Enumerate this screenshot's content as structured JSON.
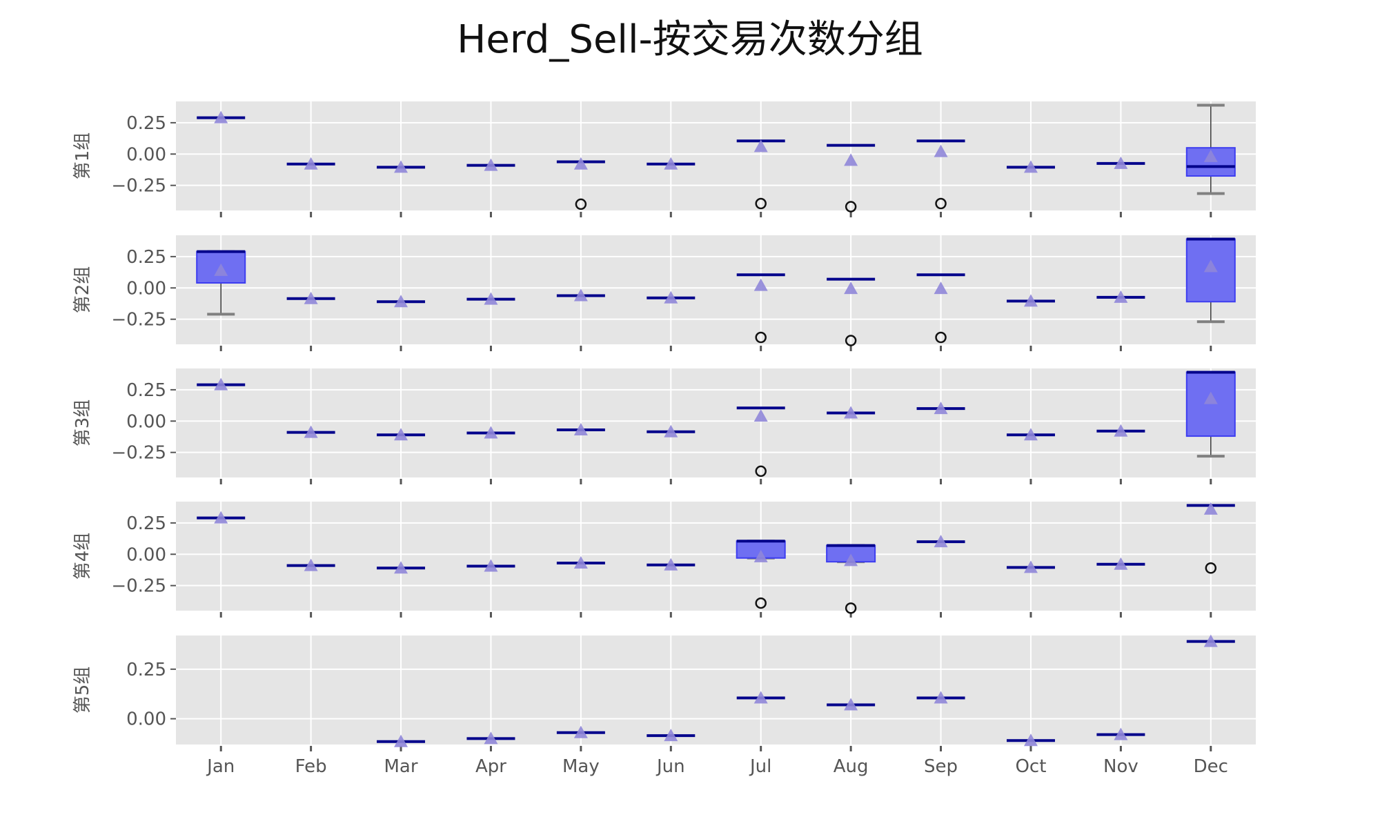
{
  "figure": {
    "title": "Herd_Sell-按交易次数分组"
  },
  "colors": {
    "panel_background": "#e5e5e5",
    "grid": "#ffffff",
    "box_fill": "#6f6ff2",
    "box_edge": "#3d3df0",
    "median": "#00008b",
    "mean_marker": "#8f86d8",
    "whisker": "#808080",
    "flier_edge": "#111111"
  },
  "chart_data": {
    "type": "box",
    "grid": true,
    "categories": [
      "Jan",
      "Feb",
      "Mar",
      "Apr",
      "May",
      "Jun",
      "Jul",
      "Aug",
      "Sep",
      "Oct",
      "Nov",
      "Dec"
    ],
    "panels": [
      {
        "ylabel": "第1组",
        "ylim": [
          -0.45,
          0.42
        ],
        "yticks": [
          0.25,
          0.0,
          -0.25
        ],
        "ytick_labels": [
          "0.25",
          "0.00",
          "−0.25"
        ],
        "boxes": [
          {
            "cat": "Jan",
            "median": 0.29,
            "mean": 0.29
          },
          {
            "cat": "Feb",
            "median": -0.08,
            "mean": -0.08
          },
          {
            "cat": "Mar",
            "median": -0.105,
            "mean": -0.105
          },
          {
            "cat": "Apr",
            "median": -0.09,
            "mean": -0.09
          },
          {
            "cat": "May",
            "median": -0.062,
            "mean": -0.08,
            "fliers": [
              -0.4
            ]
          },
          {
            "cat": "Jun",
            "median": -0.08,
            "mean": -0.08
          },
          {
            "cat": "Jul",
            "median": 0.105,
            "mean": 0.06,
            "fliers": [
              -0.395
            ]
          },
          {
            "cat": "Aug",
            "median": 0.07,
            "mean": -0.05,
            "fliers": [
              -0.42
            ]
          },
          {
            "cat": "Sep",
            "median": 0.105,
            "mean": 0.02,
            "fliers": [
              -0.395
            ]
          },
          {
            "cat": "Oct",
            "median": -0.105,
            "mean": -0.105
          },
          {
            "cat": "Nov",
            "median": -0.075,
            "mean": -0.075
          },
          {
            "cat": "Dec",
            "median": -0.1,
            "mean": -0.02,
            "q1": -0.175,
            "q3": 0.05,
            "whislo": -0.315,
            "whishi": 0.39
          }
        ]
      },
      {
        "ylabel": "第2组",
        "ylim": [
          -0.45,
          0.42
        ],
        "yticks": [
          0.25,
          0.0,
          -0.25
        ],
        "ytick_labels": [
          "0.25",
          "0.00",
          "−0.25"
        ],
        "boxes": [
          {
            "cat": "Jan",
            "median": 0.29,
            "mean": 0.14,
            "q1": 0.04,
            "q3": 0.29,
            "whislo": -0.21,
            "whishi": 0.29
          },
          {
            "cat": "Feb",
            "median": -0.085,
            "mean": -0.085
          },
          {
            "cat": "Mar",
            "median": -0.11,
            "mean": -0.11
          },
          {
            "cat": "Apr",
            "median": -0.09,
            "mean": -0.09
          },
          {
            "cat": "May",
            "median": -0.062,
            "mean": -0.062
          },
          {
            "cat": "Jun",
            "median": -0.08,
            "mean": -0.08
          },
          {
            "cat": "Jul",
            "median": 0.105,
            "mean": 0.02,
            "fliers": [
              -0.395
            ]
          },
          {
            "cat": "Aug",
            "median": 0.07,
            "mean": -0.005,
            "fliers": [
              -0.42
            ]
          },
          {
            "cat": "Sep",
            "median": 0.105,
            "mean": -0.005,
            "fliers": [
              -0.395
            ]
          },
          {
            "cat": "Oct",
            "median": -0.105,
            "mean": -0.105
          },
          {
            "cat": "Nov",
            "median": -0.075,
            "mean": -0.075
          },
          {
            "cat": "Dec",
            "median": 0.39,
            "mean": 0.17,
            "q1": -0.11,
            "q3": 0.39,
            "whislo": -0.27,
            "whishi": 0.39
          }
        ]
      },
      {
        "ylabel": "第3组",
        "ylim": [
          -0.45,
          0.42
        ],
        "yticks": [
          0.25,
          0.0,
          -0.25
        ],
        "ytick_labels": [
          "0.25",
          "0.00",
          "−0.25"
        ],
        "boxes": [
          {
            "cat": "Jan",
            "median": 0.29,
            "mean": 0.29
          },
          {
            "cat": "Feb",
            "median": -0.09,
            "mean": -0.09
          },
          {
            "cat": "Mar",
            "median": -0.11,
            "mean": -0.11
          },
          {
            "cat": "Apr",
            "median": -0.095,
            "mean": -0.095
          },
          {
            "cat": "May",
            "median": -0.07,
            "mean": -0.07
          },
          {
            "cat": "Jun",
            "median": -0.085,
            "mean": -0.085
          },
          {
            "cat": "Jul",
            "median": 0.105,
            "mean": 0.04,
            "fliers": [
              -0.4
            ]
          },
          {
            "cat": "Aug",
            "median": 0.065,
            "mean": 0.065
          },
          {
            "cat": "Sep",
            "median": 0.1,
            "mean": 0.1
          },
          {
            "cat": "Oct",
            "median": -0.11,
            "mean": -0.11
          },
          {
            "cat": "Nov",
            "median": -0.08,
            "mean": -0.08
          },
          {
            "cat": "Dec",
            "median": 0.39,
            "mean": 0.18,
            "q1": -0.12,
            "q3": 0.39,
            "whislo": -0.28,
            "whishi": 0.39
          }
        ]
      },
      {
        "ylabel": "第4组",
        "ylim": [
          -0.45,
          0.42
        ],
        "yticks": [
          0.25,
          0.0,
          -0.25
        ],
        "ytick_labels": [
          "0.25",
          "0.00",
          "−0.25"
        ],
        "boxes": [
          {
            "cat": "Jan",
            "median": 0.29,
            "mean": 0.29
          },
          {
            "cat": "Feb",
            "median": -0.09,
            "mean": -0.09
          },
          {
            "cat": "Mar",
            "median": -0.11,
            "mean": -0.11
          },
          {
            "cat": "Apr",
            "median": -0.095,
            "mean": -0.095
          },
          {
            "cat": "May",
            "median": -0.07,
            "mean": -0.07
          },
          {
            "cat": "Jun",
            "median": -0.085,
            "mean": -0.085
          },
          {
            "cat": "Jul",
            "median": 0.105,
            "mean": -0.02,
            "q1": -0.03,
            "q3": 0.105,
            "whislo": -0.03,
            "whishi": 0.105,
            "fliers": [
              -0.39
            ]
          },
          {
            "cat": "Aug",
            "median": 0.07,
            "mean": -0.05,
            "q1": -0.06,
            "q3": 0.07,
            "whislo": -0.06,
            "whishi": 0.07,
            "fliers": [
              -0.43
            ]
          },
          {
            "cat": "Sep",
            "median": 0.1,
            "mean": 0.1
          },
          {
            "cat": "Oct",
            "median": -0.105,
            "mean": -0.105
          },
          {
            "cat": "Nov",
            "median": -0.08,
            "mean": -0.08
          },
          {
            "cat": "Dec",
            "median": 0.39,
            "mean": 0.36,
            "fliers": [
              -0.11
            ]
          }
        ]
      },
      {
        "ylabel": "第5组",
        "ylim": [
          -0.13,
          0.42
        ],
        "yticks": [
          0.25,
          0.0
        ],
        "ytick_labels": [
          "0.25",
          "0.00"
        ],
        "boxes": [
          {
            "cat": "Mar",
            "median": -0.115,
            "mean": -0.115
          },
          {
            "cat": "Apr",
            "median": -0.1,
            "mean": -0.1
          },
          {
            "cat": "May",
            "median": -0.07,
            "mean": -0.07
          },
          {
            "cat": "Jun",
            "median": -0.085,
            "mean": -0.085
          },
          {
            "cat": "Jul",
            "median": 0.105,
            "mean": 0.105
          },
          {
            "cat": "Aug",
            "median": 0.07,
            "mean": 0.07
          },
          {
            "cat": "Sep",
            "median": 0.105,
            "mean": 0.105
          },
          {
            "cat": "Oct",
            "median": -0.11,
            "mean": -0.11
          },
          {
            "cat": "Nov",
            "median": -0.08,
            "mean": -0.08
          },
          {
            "cat": "Dec",
            "median": 0.39,
            "mean": 0.39
          }
        ]
      }
    ]
  }
}
